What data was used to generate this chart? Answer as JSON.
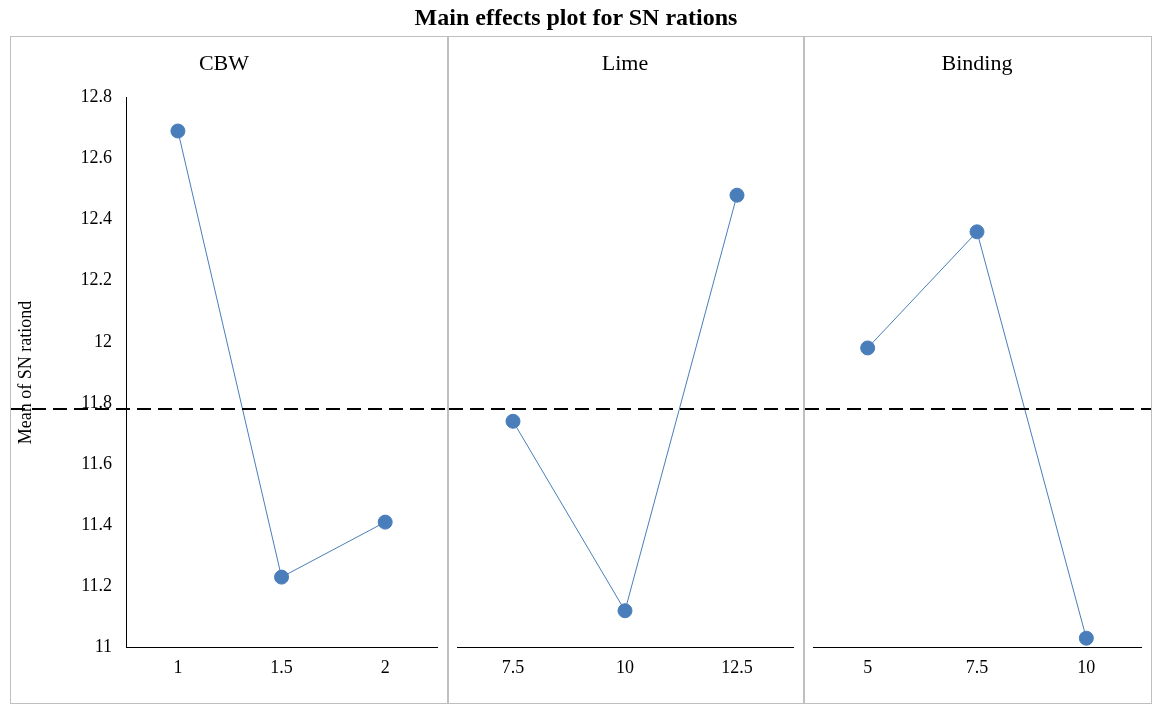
{
  "chart_data": [
    {
      "type": "line",
      "subtitle": "CBW",
      "ylabel": "Mean of SN rationd",
      "categories": [
        "1",
        "1.5",
        "2"
      ],
      "values": [
        12.69,
        11.23,
        11.41
      ],
      "color": "#4a7ebb",
      "marker": "circle",
      "grid": false,
      "ylim": [
        11,
        12.8
      ],
      "yticks": [
        11,
        11.2,
        11.4,
        11.6,
        11.8,
        12,
        12.2,
        12.4,
        12.6,
        12.8
      ],
      "ref_lines": [
        {
          "axis": "y",
          "value": 11.78,
          "color": "#000000",
          "line_style": "dashed"
        }
      ]
    },
    {
      "type": "line",
      "title": "Main effects plot for SN rations",
      "subtitle": "Lime",
      "categories": [
        "7.5",
        "10",
        "12.5"
      ],
      "values": [
        11.74,
        11.12,
        12.48
      ],
      "color": "#4a7ebb",
      "marker": "circle",
      "grid": false,
      "ylim": [
        11,
        12.8
      ],
      "tick_labels": "x",
      "ref_lines": [
        {
          "axis": "y",
          "value": 11.78,
          "color": "#000000",
          "line_style": "dashed"
        }
      ]
    },
    {
      "type": "line",
      "subtitle": "Binding",
      "categories": [
        "5",
        "7.5",
        "10"
      ],
      "values": [
        11.98,
        12.36,
        11.03
      ],
      "color": "#4a7ebb",
      "marker": "circle",
      "grid": false,
      "ylim": [
        11,
        12.8
      ],
      "tick_labels": "x",
      "ref_lines": [
        {
          "axis": "y",
          "value": 11.78,
          "color": "#000000",
          "line_style": "dashed"
        }
      ]
    }
  ]
}
